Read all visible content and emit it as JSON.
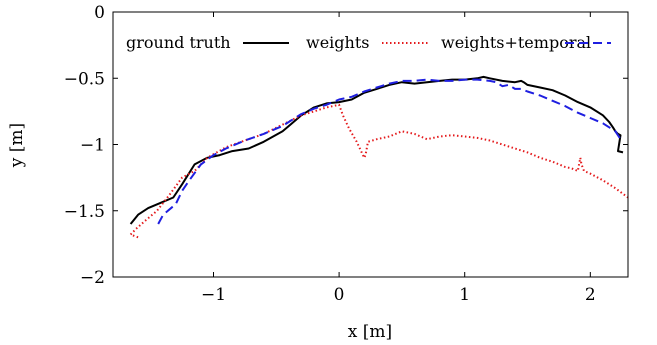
{
  "chart_data": {
    "type": "line",
    "title": "",
    "xlabel": "x [m]",
    "ylabel": "y [m]",
    "xlim": [
      -1.8,
      2.3
    ],
    "ylim": [
      -2,
      0
    ],
    "xticks": [
      -1,
      0,
      1,
      2
    ],
    "xtick_labels": [
      "−1",
      "0",
      "1",
      "2"
    ],
    "yticks": [
      0,
      -0.5,
      -1,
      -1.5,
      -2
    ],
    "ytick_labels": [
      "0",
      "−0.5",
      "−1",
      "−1.5",
      "−2"
    ],
    "grid": false,
    "legend_position": "top (single row)",
    "series": [
      {
        "name": "ground truth",
        "color": "#000000",
        "style": "solid",
        "x": [
          -1.66,
          -1.6,
          -1.52,
          -1.42,
          -1.32,
          -1.25,
          -1.15,
          -1.05,
          -0.95,
          -0.85,
          -0.72,
          -0.6,
          -0.45,
          -0.3,
          -0.2,
          -0.1,
          0.0,
          0.1,
          0.2,
          0.3,
          0.4,
          0.5,
          0.6,
          0.7,
          0.8,
          0.9,
          1.0,
          1.1,
          1.15,
          1.2,
          1.3,
          1.4,
          1.45,
          1.47,
          1.5,
          1.6,
          1.7,
          1.8,
          1.9,
          2.0,
          2.1,
          2.15,
          2.18,
          2.2,
          2.22,
          2.24,
          2.22,
          2.26
        ],
        "y": [
          -1.6,
          -1.53,
          -1.48,
          -1.44,
          -1.4,
          -1.3,
          -1.15,
          -1.1,
          -1.08,
          -1.05,
          -1.03,
          -0.98,
          -0.9,
          -0.78,
          -0.72,
          -0.69,
          -0.68,
          -0.66,
          -0.61,
          -0.58,
          -0.55,
          -0.53,
          -0.54,
          -0.53,
          -0.52,
          -0.51,
          -0.51,
          -0.5,
          -0.49,
          -0.5,
          -0.52,
          -0.53,
          -0.52,
          -0.53,
          -0.55,
          -0.57,
          -0.59,
          -0.63,
          -0.68,
          -0.72,
          -0.78,
          -0.83,
          -0.87,
          -0.9,
          -0.92,
          -0.93,
          -1.05,
          -1.06
        ]
      },
      {
        "name": "weights",
        "color": "#e41a1c",
        "style": "dotted",
        "x": [
          -1.6,
          -1.66,
          -1.62,
          -1.55,
          -1.45,
          -1.35,
          -1.25,
          -1.15,
          -1.05,
          -0.9,
          -0.75,
          -0.6,
          -0.45,
          -0.3,
          -0.2,
          -0.1,
          0.0,
          0.03,
          0.08,
          0.14,
          0.2,
          0.21,
          0.23,
          0.3,
          0.4,
          0.5,
          0.6,
          0.7,
          0.8,
          0.9,
          1.0,
          1.1,
          1.2,
          1.3,
          1.4,
          1.5,
          1.6,
          1.7,
          1.8,
          1.85,
          1.9,
          1.92,
          1.93,
          1.95,
          2.0,
          2.1,
          2.2,
          2.3
        ],
        "y": [
          -1.7,
          -1.68,
          -1.64,
          -1.58,
          -1.5,
          -1.38,
          -1.25,
          -1.2,
          -1.1,
          -1.02,
          -0.97,
          -0.92,
          -0.85,
          -0.78,
          -0.75,
          -0.72,
          -0.7,
          -0.78,
          -0.88,
          -0.98,
          -1.1,
          -1.08,
          -0.98,
          -0.96,
          -0.94,
          -0.9,
          -0.92,
          -0.96,
          -0.94,
          -0.93,
          -0.94,
          -0.95,
          -0.97,
          -1.0,
          -1.03,
          -1.06,
          -1.1,
          -1.13,
          -1.17,
          -1.18,
          -1.2,
          -1.1,
          -1.15,
          -1.2,
          -1.22,
          -1.27,
          -1.33,
          -1.4
        ]
      },
      {
        "name": "weights+temporal",
        "color": "#1f1fe0",
        "style": "dashed",
        "x": [
          -1.44,
          -1.4,
          -1.3,
          -1.25,
          -1.2,
          -1.1,
          -1.0,
          -0.9,
          -0.75,
          -0.6,
          -0.45,
          -0.3,
          -0.2,
          -0.1,
          0.0,
          0.1,
          0.2,
          0.3,
          0.4,
          0.5,
          0.6,
          0.7,
          0.8,
          0.9,
          1.0,
          1.1,
          1.2,
          1.25,
          1.3,
          1.35,
          1.4,
          1.45,
          1.5,
          1.6,
          1.7,
          1.8,
          1.9,
          2.0,
          2.1,
          2.15,
          2.2,
          2.24
        ],
        "y": [
          -1.6,
          -1.53,
          -1.45,
          -1.35,
          -1.28,
          -1.15,
          -1.08,
          -1.03,
          -0.97,
          -0.92,
          -0.86,
          -0.77,
          -0.73,
          -0.7,
          -0.66,
          -0.64,
          -0.6,
          -0.57,
          -0.54,
          -0.52,
          -0.52,
          -0.51,
          -0.52,
          -0.52,
          -0.51,
          -0.51,
          -0.52,
          -0.53,
          -0.56,
          -0.55,
          -0.58,
          -0.58,
          -0.6,
          -0.63,
          -0.67,
          -0.71,
          -0.76,
          -0.8,
          -0.84,
          -0.87,
          -0.9,
          -0.96
        ]
      }
    ]
  }
}
